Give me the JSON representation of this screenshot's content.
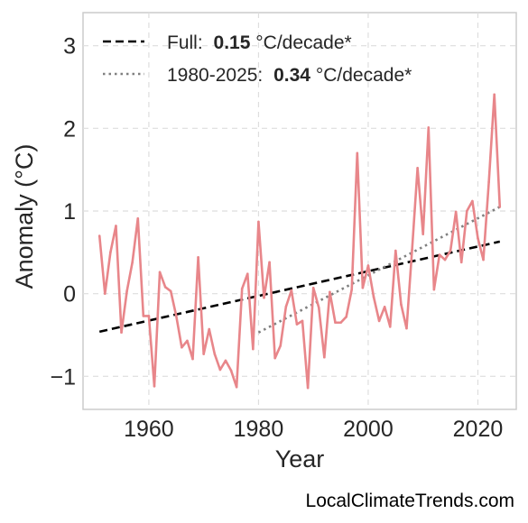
{
  "chart_data": {
    "type": "line",
    "xlabel": "Year",
    "ylabel": "Anomaly (°C)",
    "xlim": [
      1948,
      2027
    ],
    "ylim": [
      -1.4,
      3.4
    ],
    "xticks": [
      1960,
      1980,
      2000,
      2020
    ],
    "yticks": [
      -1,
      0,
      1,
      2,
      3
    ],
    "ytick_labels": [
      "−1",
      "0",
      "1",
      "2",
      "3"
    ],
    "grid": true,
    "legend_position": "top-left",
    "series": [
      {
        "kind": "anomaly",
        "color": "#e8868a",
        "x": [
          1951,
          1952,
          1953,
          1954,
          1955,
          1956,
          1957,
          1958,
          1959,
          1960,
          1961,
          1962,
          1963,
          1964,
          1965,
          1966,
          1967,
          1968,
          1969,
          1970,
          1971,
          1972,
          1973,
          1974,
          1975,
          1976,
          1977,
          1978,
          1979,
          1980,
          1981,
          1982,
          1983,
          1984,
          1985,
          1986,
          1987,
          1988,
          1989,
          1990,
          1991,
          1992,
          1993,
          1994,
          1995,
          1996,
          1997,
          1998,
          1999,
          2000,
          2001,
          2002,
          2003,
          2004,
          2005,
          2006,
          2007,
          2008,
          2009,
          2010,
          2011,
          2012,
          2013,
          2014,
          2015,
          2016,
          2017,
          2018,
          2019,
          2020,
          2021,
          2022,
          2023,
          2024
        ],
        "y": [
          0.7,
          0.0,
          0.5,
          0.82,
          -0.47,
          0.03,
          0.38,
          0.91,
          -0.27,
          -0.27,
          -1.12,
          0.26,
          0.08,
          0.03,
          -0.27,
          -0.65,
          -0.57,
          -0.79,
          0.44,
          -0.73,
          -0.43,
          -0.73,
          -0.92,
          -0.81,
          -0.93,
          -1.13,
          0.06,
          0.24,
          -0.67,
          0.87,
          -0.05,
          0.38,
          -0.78,
          -0.63,
          -0.16,
          0.04,
          -0.37,
          -0.33,
          -1.14,
          0.07,
          -0.17,
          -0.77,
          0.02,
          -0.35,
          -0.35,
          -0.28,
          0.05,
          1.7,
          0.07,
          0.34,
          -0.04,
          -0.33,
          -0.16,
          -0.4,
          0.52,
          -0.13,
          -0.42,
          0.53,
          1.52,
          0.72,
          2.01,
          0.05,
          0.47,
          0.41,
          0.52,
          0.99,
          0.38,
          1.0,
          1.12,
          0.67,
          0.41,
          1.35,
          2.41,
          1.05
        ]
      },
      {
        "name": "Full:",
        "kind": "trend",
        "color": "#000000",
        "style": "dashed",
        "rate": "0.15",
        "unit": "°C/decade*",
        "x": [
          1951,
          2024
        ],
        "y": [
          -0.46,
          0.63
        ]
      },
      {
        "name": "1980-2025:",
        "kind": "trend",
        "color": "#808080",
        "style": "dotted",
        "rate": "0.34",
        "unit": "°C/decade*",
        "x": [
          1980,
          2024
        ],
        "y": [
          -0.47,
          1.05
        ]
      }
    ]
  },
  "footer": {
    "watermark": "LocalClimateTrends.com"
  }
}
